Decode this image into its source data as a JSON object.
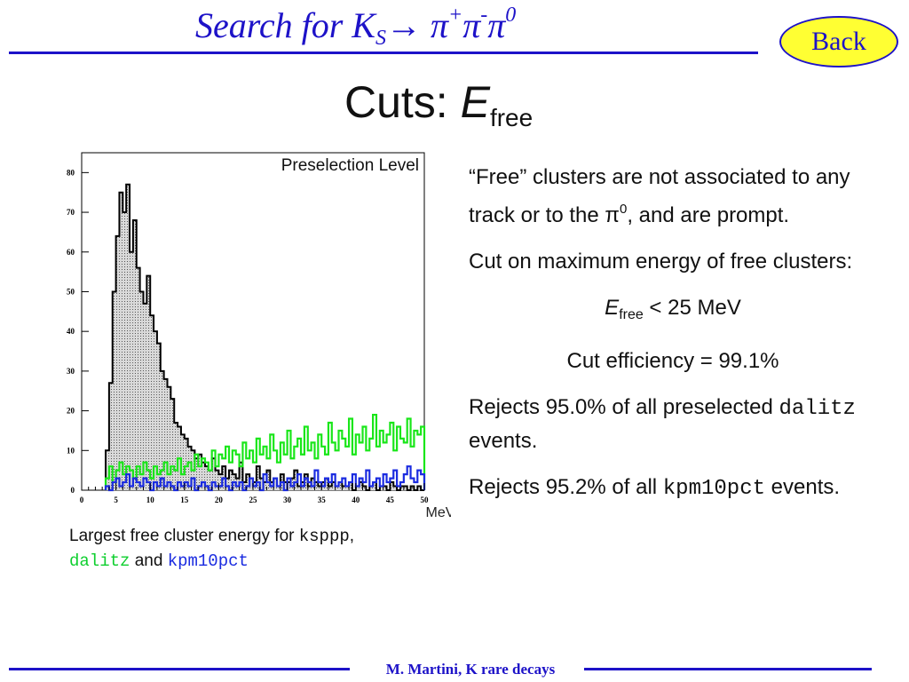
{
  "header": {
    "title_prefix": "Search for K",
    "title_sub": "S",
    "title_arrow": "→ π",
    "title_sup1": "+",
    "title_mid": "π",
    "title_sup2": "-",
    "title_end": "π",
    "title_sup3": "0",
    "back_label": "Back"
  },
  "heading": {
    "prefix": "Cuts: ",
    "var": "E",
    "sub": "free"
  },
  "figure": {
    "chart_data": {
      "type": "histogram",
      "legend_label": "Preselection Level",
      "x_unit": "MeV",
      "xlim": [
        0,
        50
      ],
      "ylim": [
        0,
        85
      ],
      "x_ticks": [
        0,
        5,
        10,
        15,
        20,
        25,
        30,
        35,
        40,
        45,
        50
      ],
      "y_ticks": [
        0,
        10,
        20,
        30,
        40,
        50,
        60,
        70,
        80
      ],
      "bin_width": 0.5,
      "colors": {
        "ksppp": "#000000",
        "dalitz": "#19e619",
        "kpm10pct": "#1a2be0"
      },
      "series": [
        {
          "name": "ksppp",
          "x": [
            3.5,
            4,
            4.5,
            5,
            5.5,
            6,
            6.5,
            7,
            7.5,
            8,
            8.5,
            9,
            9.5,
            10,
            10.5,
            11,
            11.5,
            12,
            12.5,
            13,
            13.5,
            14,
            14.5,
            15,
            15.5,
            16,
            16.5,
            17,
            17.5,
            18,
            18.5,
            19,
            19.5,
            20,
            20.5,
            21,
            21.5,
            22,
            22.5,
            23,
            23.5,
            24,
            24.5,
            25,
            25.5,
            26,
            26.5,
            27,
            27.5,
            28,
            28.5,
            29,
            29.5,
            30,
            30.5,
            31,
            31.5,
            32,
            32.5,
            33,
            33.5,
            34,
            34.5,
            35,
            35.5,
            36,
            36.5,
            37,
            37.5,
            38,
            38.5,
            39,
            39.5,
            40,
            40.5,
            41,
            41.5,
            42,
            42.5,
            43,
            43.5,
            44,
            44.5,
            45,
            45.5,
            46,
            46.5,
            47,
            47.5,
            48,
            48.5,
            49,
            49.5
          ],
          "values": [
            10,
            27,
            50,
            64,
            75,
            70,
            77,
            60,
            68,
            56,
            50,
            47,
            54,
            44,
            40,
            37,
            30,
            28,
            26,
            23,
            17,
            16,
            14,
            13,
            11,
            10,
            8,
            9,
            7,
            6,
            5,
            8,
            5,
            4,
            6,
            3,
            5,
            4,
            3,
            7,
            2,
            4,
            3,
            2,
            6,
            3,
            2,
            5,
            2,
            3,
            1,
            4,
            2,
            2,
            3,
            5,
            1,
            2,
            4,
            1,
            3,
            2,
            1,
            2,
            3,
            1,
            2,
            1,
            2,
            1,
            1,
            2,
            0,
            1,
            2,
            1,
            0,
            1,
            2,
            0,
            1,
            1,
            0,
            2,
            1,
            0,
            1,
            1,
            0,
            1,
            0,
            1,
            0
          ]
        },
        {
          "name": "dalitz",
          "x": [
            3.5,
            4,
            4.5,
            5,
            5.5,
            6,
            6.5,
            7,
            7.5,
            8,
            8.5,
            9,
            9.5,
            10,
            10.5,
            11,
            11.5,
            12,
            12.5,
            13,
            13.5,
            14,
            14.5,
            15,
            15.5,
            16,
            16.5,
            17,
            17.5,
            18,
            18.5,
            19,
            19.5,
            20,
            20.5,
            21,
            21.5,
            22,
            22.5,
            23,
            23.5,
            24,
            24.5,
            25,
            25.5,
            26,
            26.5,
            27,
            27.5,
            28,
            28.5,
            29,
            29.5,
            30,
            30.5,
            31,
            31.5,
            32,
            32.5,
            33,
            33.5,
            34,
            34.5,
            35,
            35.5,
            36,
            36.5,
            37,
            37.5,
            38,
            38.5,
            39,
            39.5,
            40,
            40.5,
            41,
            41.5,
            42,
            42.5,
            43,
            43.5,
            44,
            44.5,
            45,
            45.5,
            46,
            46.5,
            47,
            47.5,
            48,
            48.5,
            49,
            49.5
          ],
          "values": [
            3,
            6,
            2,
            5,
            7,
            4,
            6,
            5,
            3,
            6,
            4,
            7,
            5,
            3,
            6,
            4,
            5,
            7,
            4,
            6,
            5,
            8,
            4,
            6,
            7,
            5,
            9,
            6,
            8,
            7,
            5,
            10,
            6,
            9,
            8,
            11,
            7,
            10,
            9,
            6,
            12,
            8,
            10,
            7,
            13,
            9,
            11,
            8,
            14,
            10,
            7,
            12,
            9,
            15,
            8,
            11,
            13,
            9,
            16,
            10,
            12,
            8,
            14,
            11,
            9,
            17,
            12,
            10,
            15,
            13,
            11,
            18,
            9,
            14,
            12,
            16,
            10,
            13,
            19,
            11,
            15,
            12,
            14,
            17,
            10,
            16,
            13,
            12,
            18,
            11,
            15,
            14,
            16
          ]
        },
        {
          "name": "kpm10pct",
          "x": [
            3.5,
            4,
            4.5,
            5,
            5.5,
            6,
            6.5,
            7,
            7.5,
            8,
            8.5,
            9,
            9.5,
            10,
            10.5,
            11,
            11.5,
            12,
            12.5,
            13,
            13.5,
            14,
            14.5,
            15,
            15.5,
            16,
            16.5,
            17,
            17.5,
            18,
            18.5,
            19,
            19.5,
            20,
            20.5,
            21,
            21.5,
            22,
            22.5,
            23,
            23.5,
            24,
            24.5,
            25,
            25.5,
            26,
            26.5,
            27,
            27.5,
            28,
            28.5,
            29,
            29.5,
            30,
            30.5,
            31,
            31.5,
            32,
            32.5,
            33,
            33.5,
            34,
            34.5,
            35,
            35.5,
            36,
            36.5,
            37,
            37.5,
            38,
            38.5,
            39,
            39.5,
            40,
            40.5,
            41,
            41.5,
            42,
            42.5,
            43,
            43.5,
            44,
            44.5,
            45,
            45.5,
            46,
            46.5,
            47,
            47.5,
            48,
            48.5,
            49,
            49.5
          ],
          "values": [
            1,
            0,
            2,
            3,
            1,
            2,
            4,
            1,
            3,
            2,
            1,
            3,
            2,
            0,
            2,
            1,
            3,
            1,
            2,
            1,
            0,
            2,
            1,
            2,
            1,
            3,
            0,
            1,
            2,
            1,
            0,
            2,
            1,
            1,
            3,
            1,
            0,
            2,
            1,
            2,
            0,
            1,
            3,
            1,
            2,
            0,
            4,
            2,
            1,
            3,
            1,
            2,
            0,
            3,
            1,
            2,
            4,
            1,
            3,
            2,
            1,
            5,
            2,
            1,
            3,
            2,
            4,
            1,
            2,
            3,
            1,
            2,
            4,
            1,
            3,
            2,
            5,
            1,
            2,
            3,
            1,
            4,
            2,
            3,
            5,
            1,
            2,
            4,
            6,
            3,
            2,
            5,
            4
          ]
        }
      ]
    }
  },
  "caption": {
    "part1": "Largest free cluster energy for ",
    "ksppp": "ksppp",
    "comma": ",",
    "dalitz": "dalitz",
    "and": " and ",
    "kpm": "kpm10pct"
  },
  "text": {
    "p1_a": "“Free” clusters are not associated to any track or to the ",
    "p1_pi": "π",
    "p1_sup": "0",
    "p1_b": ", and are prompt.",
    "p2": "Cut on maximum energy of free clusters:",
    "p3_var": "E",
    "p3_sub": "free",
    "p3_rest": " < 25 MeV",
    "p4": "Cut efficiency = 99.1%",
    "p5_a": "Rejects 95.0% of all preselected ",
    "p5_mono": "dalitz",
    "p5_b": " events.",
    "p6_a": "Rejects 95.2% of all ",
    "p6_mono": "kpm10pct",
    "p6_b": " events."
  },
  "footer": {
    "text": "M. Martini, K rare decays"
  }
}
